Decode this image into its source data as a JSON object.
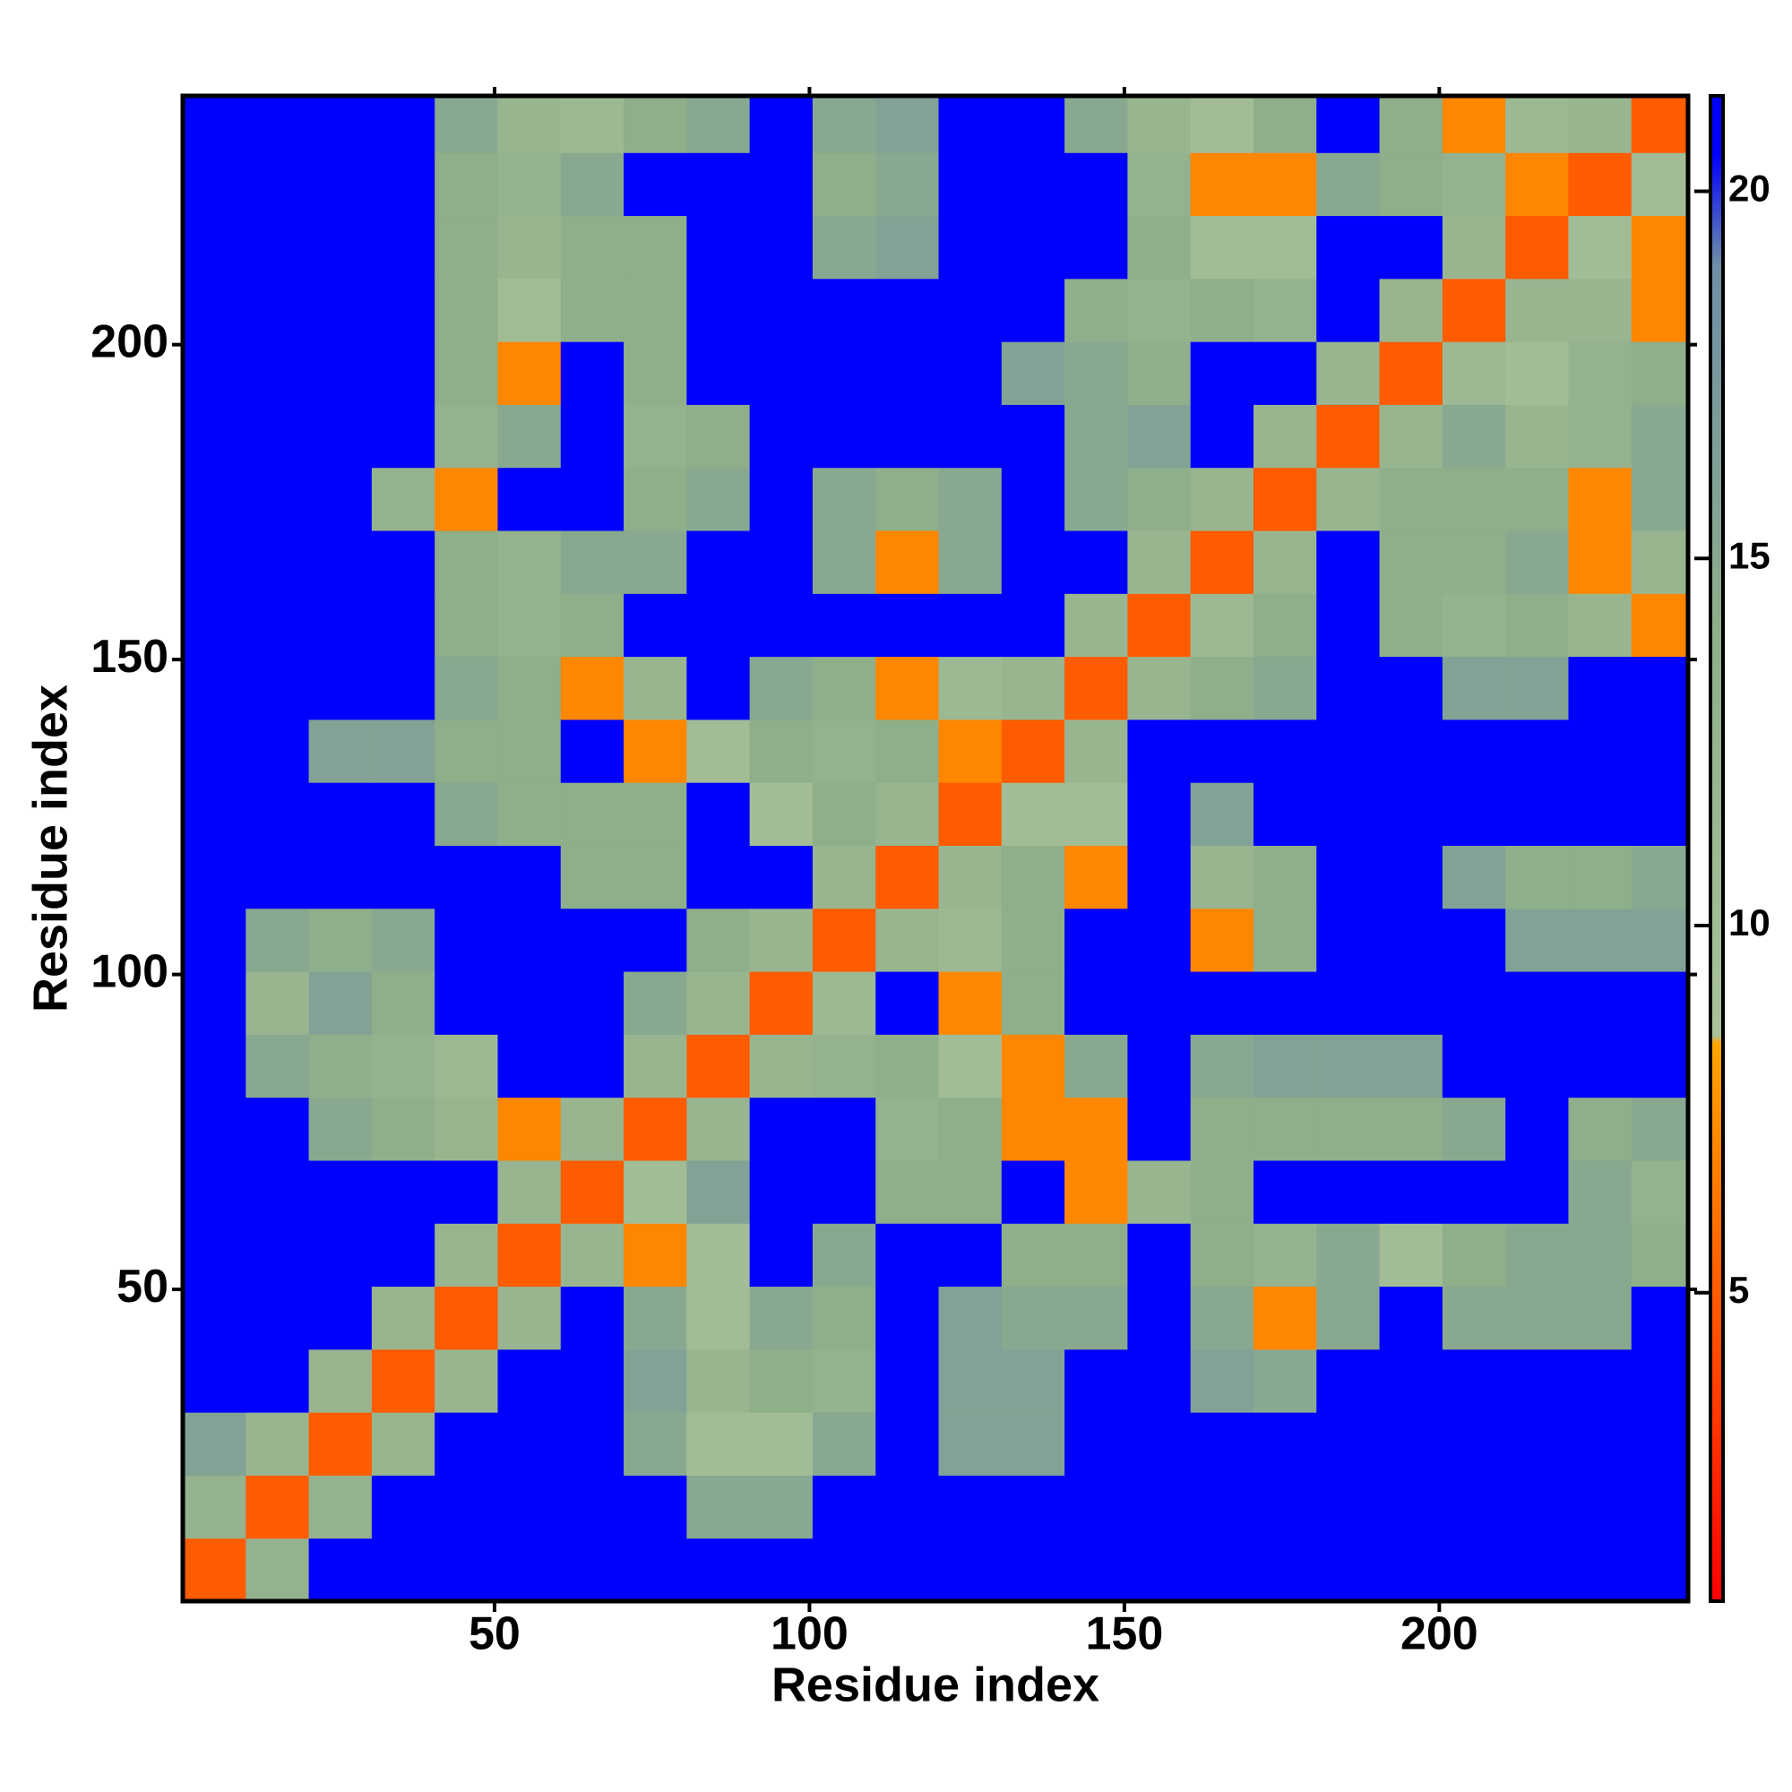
{
  "chart_data": {
    "type": "heatmap",
    "x_label": "Residue index",
    "y_label": "Residue index",
    "xlim": [
      0.5,
      239.5
    ],
    "ylim": [
      0.5,
      239.5
    ],
    "xticks": [
      50,
      100,
      150,
      200
    ],
    "yticks": [
      50,
      100,
      150,
      200
    ],
    "clim": [
      0.8,
      21.3
    ],
    "cticks": [
      5,
      10,
      15,
      20
    ],
    "colorscale": [
      [
        0.8,
        "#ff0000"
      ],
      [
        8.4,
        "#ffa500"
      ],
      [
        8.5,
        "#a9c29a"
      ],
      [
        14,
        "#8fae8a"
      ],
      [
        19,
        "#6f8fa6"
      ],
      [
        20.5,
        "#0000ff"
      ]
    ],
    "x": [
      5.5,
      15.5,
      25.5,
      35.5,
      45.5,
      55.5,
      65.5,
      75.5,
      85.5,
      95.5,
      105.5,
      115.5,
      125.5,
      135.5,
      145.5,
      155.5,
      165.5,
      175.5,
      185.5,
      195.5,
      205.5,
      215.5,
      225.5,
      235.5
    ],
    "y": [
      5.5,
      15.5,
      25.5,
      35.5,
      45.5,
      55.5,
      65.5,
      75.5,
      85.5,
      95.5,
      105.5,
      115.5,
      125.5,
      135.5,
      145.5,
      155.5,
      165.5,
      175.5,
      185.5,
      195.5,
      205.5,
      215.5,
      225.5,
      235.5
    ],
    "z": [
      [
        5,
        13,
        21,
        21,
        21,
        21,
        21,
        21,
        21,
        21,
        21,
        21,
        21,
        21,
        21,
        21,
        21,
        21,
        21,
        21,
        21,
        21,
        21,
        21
      ],
      [
        13,
        5,
        13,
        21,
        21,
        21,
        21,
        21,
        15,
        15,
        21,
        21,
        21,
        21,
        21,
        21,
        21,
        21,
        21,
        21,
        21,
        21,
        21,
        21
      ],
      [
        16,
        12,
        5,
        12,
        21,
        21,
        21,
        15,
        10,
        10,
        15,
        21,
        16,
        16,
        21,
        21,
        21,
        21,
        21,
        21,
        21,
        21,
        21,
        21
      ],
      [
        21,
        21,
        12,
        5,
        12,
        21,
        21,
        16,
        12,
        14,
        13,
        21,
        16,
        16,
        21,
        21,
        16,
        15,
        21,
        21,
        21,
        21,
        21,
        21
      ],
      [
        21,
        21,
        21,
        12,
        5,
        12,
        21,
        15,
        10,
        15,
        14,
        21,
        16,
        15,
        15,
        21,
        15,
        7,
        15,
        21,
        15,
        15,
        15,
        21
      ],
      [
        21,
        21,
        21,
        21,
        12,
        5,
        12,
        7,
        10,
        21,
        15,
        21,
        21,
        14,
        14,
        21,
        14,
        13,
        15,
        10,
        14,
        15,
        15,
        14
      ],
      [
        21,
        21,
        21,
        21,
        21,
        12,
        5,
        10,
        16,
        21,
        21,
        14,
        14,
        21,
        7,
        12,
        14,
        21,
        21,
        21,
        21,
        21,
        15,
        13
      ],
      [
        21,
        21,
        15,
        14,
        12,
        7,
        12,
        5,
        12,
        21,
        21,
        13,
        14,
        7,
        7,
        21,
        14,
        14,
        14,
        14,
        15,
        21,
        14,
        15
      ],
      [
        21,
        15,
        14,
        13,
        11,
        21,
        21,
        12,
        5,
        12,
        13,
        14,
        10,
        7,
        15,
        21,
        15,
        16,
        16,
        16,
        21,
        21,
        21,
        21
      ],
      [
        21,
        12,
        16,
        14,
        21,
        21,
        21,
        15,
        12,
        5,
        11,
        21,
        7,
        14,
        21,
        21,
        21,
        21,
        21,
        21,
        21,
        21,
        21,
        21
      ],
      [
        21,
        15,
        14,
        15,
        21,
        21,
        21,
        21,
        14,
        12,
        5,
        12,
        11,
        14,
        21,
        21,
        7,
        14,
        21,
        21,
        21,
        16,
        16,
        16
      ],
      [
        21,
        21,
        21,
        21,
        21,
        21,
        14,
        14,
        21,
        21,
        12,
        5,
        12,
        14,
        7,
        21,
        12,
        14,
        21,
        21,
        16,
        14,
        14,
        15
      ],
      [
        21,
        21,
        21,
        21,
        15,
        14,
        14,
        14,
        21,
        10,
        14,
        12,
        5,
        10,
        10,
        21,
        16,
        21,
        21,
        21,
        21,
        21,
        21,
        21
      ],
      [
        21,
        21,
        16,
        16,
        14,
        14,
        21,
        7,
        10,
        14,
        13,
        14,
        7,
        5,
        12,
        21,
        21,
        21,
        21,
        21,
        21,
        21,
        21,
        21
      ],
      [
        21,
        21,
        21,
        21,
        15,
        14,
        7,
        12,
        21,
        15,
        14,
        7,
        11,
        12,
        5,
        12,
        14,
        15,
        21,
        21,
        16,
        16,
        21,
        21
      ],
      [
        21,
        21,
        21,
        21,
        14,
        13,
        14,
        21,
        21,
        21,
        21,
        21,
        21,
        21,
        12,
        5,
        11,
        14,
        21,
        14,
        13,
        14,
        12,
        7
      ],
      [
        21,
        21,
        21,
        21,
        14,
        13,
        15,
        15,
        21,
        21,
        15,
        7,
        15,
        21,
        21,
        12,
        5,
        12,
        21,
        14,
        14,
        15,
        7,
        12
      ],
      [
        21,
        21,
        21,
        13,
        7,
        21,
        21,
        14,
        15,
        21,
        15,
        14,
        15,
        21,
        15,
        14,
        12,
        5,
        12,
        14,
        14,
        14,
        7,
        15
      ],
      [
        21,
        21,
        21,
        21,
        13,
        15,
        21,
        13,
        14,
        21,
        21,
        21,
        21,
        21,
        15,
        16,
        21,
        12,
        5,
        12,
        15,
        12,
        13,
        15
      ],
      [
        21,
        21,
        21,
        21,
        14,
        7,
        21,
        14,
        21,
        21,
        21,
        21,
        21,
        16,
        15,
        14,
        21,
        21,
        12,
        5,
        11,
        10,
        13,
        14
      ],
      [
        21,
        21,
        21,
        21,
        14,
        10,
        14,
        14,
        21,
        21,
        21,
        21,
        21,
        21,
        14,
        13,
        14,
        13,
        21,
        12,
        5,
        12,
        12,
        7
      ],
      [
        21,
        21,
        21,
        21,
        14,
        12,
        14,
        14,
        21,
        21,
        15,
        16,
        21,
        21,
        21,
        14,
        10,
        10,
        21,
        21,
        12,
        5,
        10,
        7
      ],
      [
        21,
        21,
        21,
        21,
        14,
        13,
        15,
        21,
        21,
        21,
        14,
        15,
        21,
        21,
        21,
        13,
        7,
        7,
        15,
        14,
        13,
        7,
        5,
        10
      ],
      [
        21,
        21,
        21,
        21,
        15,
        12,
        11,
        14,
        15,
        21,
        15,
        16,
        21,
        21,
        15,
        12,
        10,
        14,
        21,
        14,
        7,
        11,
        12,
        5
      ]
    ]
  }
}
